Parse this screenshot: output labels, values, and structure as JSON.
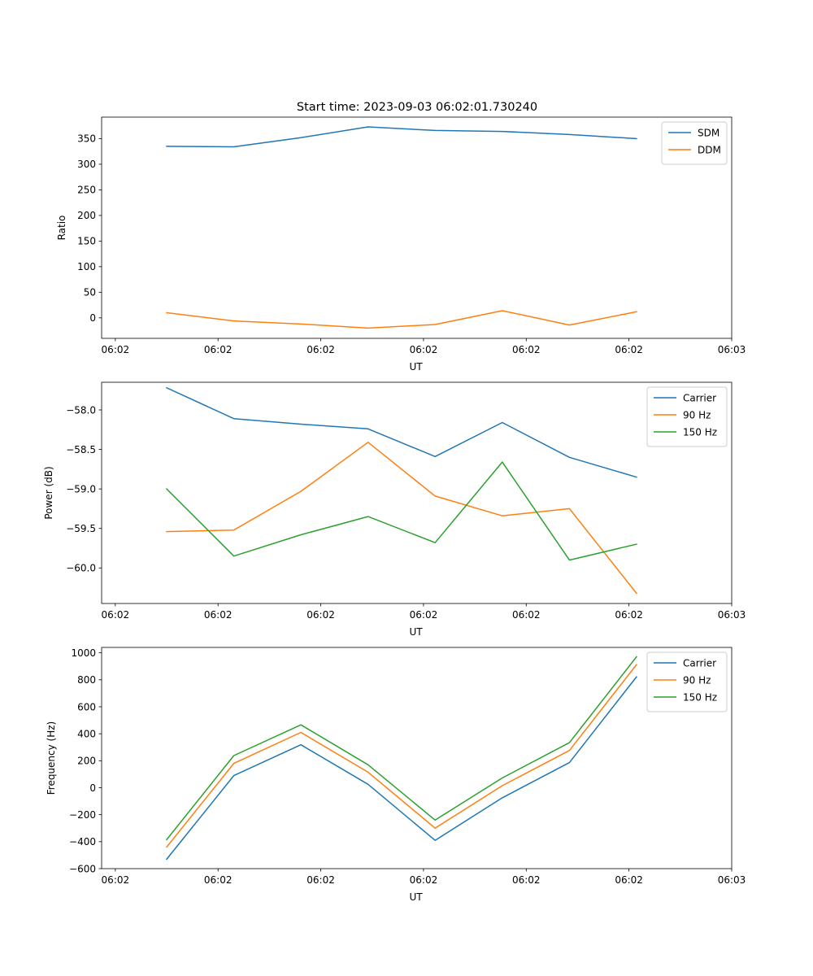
{
  "title": "Start time: 2023-09-03 06:02:01.730240",
  "colors": {
    "blue": "#1f77b4",
    "orange": "#ff7f0e",
    "green": "#2ca02c"
  },
  "chart_data": [
    {
      "type": "line",
      "title": "Start time: 2023-09-03 06:02:01.730240",
      "xlabel": "UT",
      "ylabel": "Ratio",
      "xlim": [
        -0.2,
        9.0
      ],
      "xticks": [
        0,
        1.5,
        3,
        4.5,
        6,
        7.5,
        9
      ],
      "xticklabels": [
        "06:02",
        "06:02",
        "06:02",
        "06:02",
        "06:02",
        "06:02",
        "06:03"
      ],
      "ylim": [
        -40,
        392
      ],
      "yticks": [
        0,
        50,
        100,
        150,
        200,
        250,
        300,
        350
      ],
      "yticklabels": [
        "0",
        "50",
        "100",
        "150",
        "200",
        "250",
        "300",
        "350"
      ],
      "x": [
        0.75,
        1.73,
        2.71,
        3.69,
        4.67,
        5.65,
        6.63,
        7.61
      ],
      "legend": "top-right",
      "series": [
        {
          "name": "SDM",
          "color": "#1f77b4",
          "values": [
            335,
            334,
            352,
            373,
            366,
            364,
            358,
            350
          ]
        },
        {
          "name": "DDM",
          "color": "#ff7f0e",
          "values": [
            10,
            -6,
            -12,
            -20,
            -13,
            14,
            -14,
            12
          ]
        }
      ]
    },
    {
      "type": "line",
      "xlabel": "UT",
      "ylabel": "Power (dB)",
      "xlim": [
        -0.2,
        9.0
      ],
      "xticks": [
        0,
        1.5,
        3,
        4.5,
        6,
        7.5,
        9
      ],
      "xticklabels": [
        "06:02",
        "06:02",
        "06:02",
        "06:02",
        "06:02",
        "06:02",
        "06:03"
      ],
      "ylim": [
        -60.45,
        -57.65
      ],
      "yticks": [
        -58.0,
        -58.5,
        -59.0,
        -59.5,
        -60.0
      ],
      "yticklabels": [
        "−58.0",
        "−58.5",
        "−59.0",
        "−59.5",
        "−60.0"
      ],
      "x": [
        0.75,
        1.73,
        2.71,
        3.69,
        4.67,
        5.65,
        6.63,
        7.61
      ],
      "legend": "top-right",
      "series": [
        {
          "name": "Carrier",
          "color": "#1f77b4",
          "values": [
            -57.72,
            -58.11,
            -58.18,
            -58.24,
            -58.59,
            -58.16,
            -58.6,
            -58.85
          ]
        },
        {
          "name": "90 Hz",
          "color": "#ff7f0e",
          "values": [
            -59.54,
            -59.52,
            -59.03,
            -58.41,
            -59.09,
            -59.34,
            -59.25,
            -60.32
          ]
        },
        {
          "name": "150 Hz",
          "color": "#2ca02c",
          "values": [
            -59.0,
            -59.85,
            -59.58,
            -59.35,
            -59.68,
            -58.66,
            -59.9,
            -59.7
          ]
        }
      ]
    },
    {
      "type": "line",
      "xlabel": "UT",
      "ylabel": "Frequency (Hz)",
      "xlim": [
        -0.2,
        9.0
      ],
      "xticks": [
        0,
        1.5,
        3,
        4.5,
        6,
        7.5,
        9
      ],
      "xticklabels": [
        "06:02",
        "06:02",
        "06:02",
        "06:02",
        "06:02",
        "06:02",
        "06:03"
      ],
      "ylim": [
        -600,
        1040
      ],
      "yticks": [
        -600,
        -400,
        -200,
        0,
        200,
        400,
        600,
        800,
        1000
      ],
      "yticklabels": [
        "−600",
        "−400",
        "−200",
        "0",
        "200",
        "400",
        "600",
        "800",
        "1000"
      ],
      "x": [
        0.75,
        1.73,
        2.71,
        3.69,
        4.67,
        5.65,
        6.63,
        7.61
      ],
      "legend": "top-right",
      "series": [
        {
          "name": "Carrier",
          "color": "#1f77b4",
          "values": [
            -530,
            90,
            318,
            25,
            -390,
            -75,
            186,
            822
          ]
        },
        {
          "name": "90 Hz",
          "color": "#ff7f0e",
          "values": [
            -440,
            180,
            410,
            115,
            -300,
            15,
            276,
            912
          ]
        },
        {
          "name": "150 Hz",
          "color": "#2ca02c",
          "values": [
            -385,
            238,
            466,
            170,
            -240,
            72,
            334,
            970
          ]
        }
      ]
    }
  ]
}
